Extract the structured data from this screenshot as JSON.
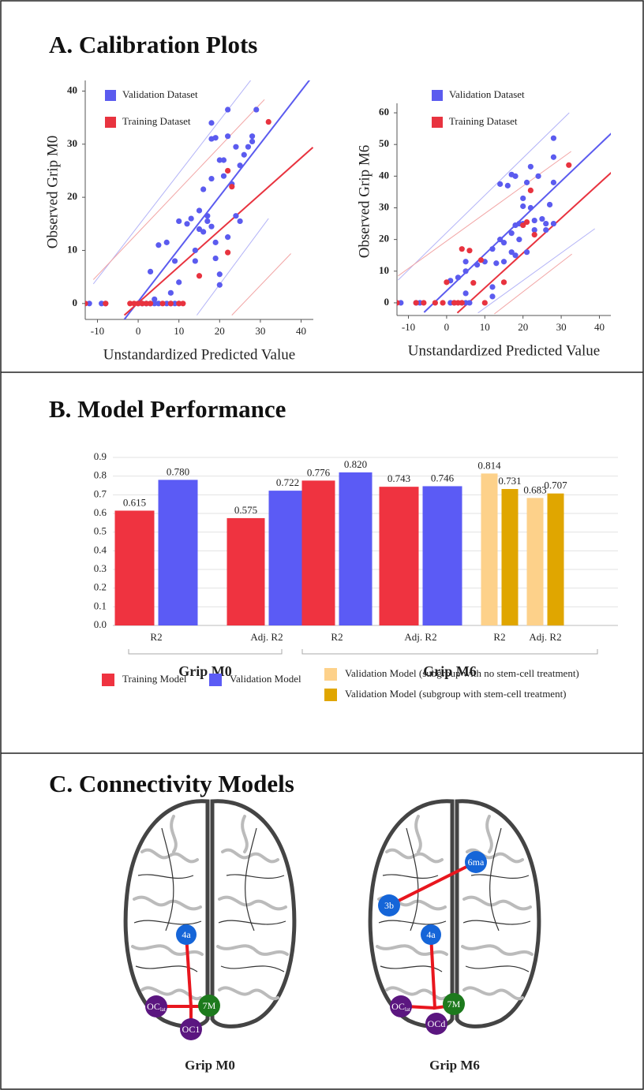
{
  "panel_titles": [
    "A. Calibration Plots",
    "B. Model Performance",
    "C. Connectivity Models"
  ],
  "chart_data": [
    {
      "type": "scatter",
      "x_label": "Unstandardized Predicted Value",
      "y_label": "Observed Grip M0",
      "xlim": [
        -13,
        43
      ],
      "ylim": [
        -3,
        42
      ],
      "xticks": [
        -10,
        0,
        10,
        20,
        30,
        40
      ],
      "yticks": [
        0,
        10,
        20,
        30,
        40
      ],
      "series": [
        {
          "name": "Validation Dataset",
          "color": "#5b5bef",
          "x": [
            -12,
            -9,
            -8,
            0,
            1,
            2,
            3,
            4,
            5,
            7,
            8,
            9,
            10,
            4,
            3,
            5,
            7,
            8,
            9,
            10,
            10,
            12,
            13,
            14,
            14,
            15,
            15,
            16,
            16,
            17,
            17,
            18,
            18,
            18,
            19,
            18,
            19,
            19,
            20,
            20,
            20,
            21,
            21,
            22,
            22,
            22,
            23,
            24,
            24,
            25,
            25,
            26,
            27,
            28,
            28,
            29
          ],
          "values": [
            0,
            0,
            0,
            0,
            0,
            0,
            0,
            0,
            0,
            0,
            0,
            0,
            0,
            0.8,
            6,
            11,
            11.5,
            2,
            8,
            4,
            15.5,
            15,
            16,
            10,
            8,
            17.5,
            14,
            13.5,
            21.5,
            16.5,
            15.5,
            34,
            31,
            23.5,
            31.2,
            14.5,
            8.5,
            11.5,
            27,
            3.5,
            5.5,
            24,
            27,
            31.5,
            36.5,
            12.5,
            22.5,
            29.5,
            16.5,
            26,
            15.5,
            28,
            29.5,
            31.5,
            30.5,
            36.5
          ]
        },
        {
          "name": "Training Dataset",
          "color": "#e8333f",
          "x": [
            -13,
            -8,
            -2,
            -1,
            0,
            1,
            2,
            3,
            6,
            8,
            10,
            11,
            15,
            22,
            22,
            23,
            32
          ],
          "values": [
            0,
            0,
            0,
            0,
            0,
            0,
            0,
            0,
            0,
            0,
            0,
            0,
            5.2,
            9.6,
            25,
            22,
            34.2
          ]
        }
      ],
      "fit_lines": [
        {
          "color": "#5b5bef",
          "width": 2,
          "x": [
            -3.4,
            42.5
          ],
          "values": [
            -3,
            42.5
          ]
        },
        {
          "color": "#b3b3f7",
          "width": 1,
          "x": [
            -11,
            27.8
          ],
          "values": [
            3.7,
            42.2
          ]
        },
        {
          "color": "#b3b3f7",
          "width": 1,
          "x": [
            14.4,
            32
          ],
          "values": [
            -2.2,
            16
          ]
        },
        {
          "color": "#e8333f",
          "width": 2,
          "x": [
            -3.4,
            42.9
          ],
          "values": [
            -2.2,
            29.4
          ]
        },
        {
          "color": "#f2a5a5",
          "width": 1,
          "x": [
            -11,
            31
          ],
          "values": [
            4.5,
            38.4
          ]
        },
        {
          "color": "#f2a5a5",
          "width": 1,
          "x": [
            23,
            37.5
          ],
          "values": [
            -2.2,
            9.4
          ]
        }
      ]
    },
    {
      "type": "scatter",
      "x_label": "Unstandardized Predicted Value",
      "y_label": "Observed Grip M6",
      "xlim": [
        -13,
        43
      ],
      "ylim": [
        -4,
        63
      ],
      "xticks": [
        -10,
        0,
        10,
        20,
        30,
        40
      ],
      "yticks": [
        0,
        10,
        20,
        30,
        40,
        50,
        60
      ],
      "series": [
        {
          "name": "Validation Dataset",
          "color": "#5b5bef",
          "x": [
            -12,
            -8,
            -7,
            1,
            2,
            4,
            5,
            6,
            1,
            3,
            5,
            5,
            5,
            8,
            10,
            12,
            12,
            12,
            13,
            14,
            14,
            15,
            15,
            16,
            17,
            17,
            17,
            18,
            18,
            18,
            19,
            19,
            20,
            20,
            20,
            21,
            21,
            22,
            22,
            23,
            23,
            24,
            25,
            26,
            26,
            27,
            28,
            28,
            28,
            28
          ],
          "values": [
            0,
            0,
            0,
            0,
            0,
            0,
            0,
            0,
            7,
            8,
            10,
            13,
            3,
            12,
            13,
            17,
            5,
            2,
            12.5,
            20,
            37.5,
            13,
            19,
            37,
            22,
            40.5,
            16,
            15,
            40,
            24.5,
            25,
            20,
            30.5,
            33,
            25,
            38,
            16,
            43,
            30,
            23,
            26,
            40,
            26.5,
            23,
            25,
            31,
            52,
            46,
            38,
            25
          ]
        },
        {
          "name": "Training Dataset",
          "color": "#e8333f",
          "x": [
            -13,
            -8,
            -6,
            -3,
            -1,
            0,
            2,
            3,
            4,
            4,
            6,
            7,
            9,
            10,
            15,
            20,
            21,
            22,
            23,
            32
          ],
          "values": [
            0,
            0,
            0,
            0,
            0,
            6.5,
            0,
            0,
            0,
            17,
            16.5,
            6.3,
            13.5,
            0,
            6.5,
            24.5,
            25.5,
            35.5,
            21.5,
            43.5
          ]
        }
      ],
      "fit_lines": [
        {
          "color": "#5b5bef",
          "width": 2,
          "x": [
            -5.9,
            43.7
          ],
          "values": [
            -3,
            54.2
          ]
        },
        {
          "color": "#b3b3f7",
          "width": 1,
          "x": [
            -12.7,
            32.1
          ],
          "values": [
            7.2,
            60
          ]
        },
        {
          "color": "#b3b3f7",
          "width": 1,
          "x": [
            8.2,
            38.8
          ],
          "values": [
            -3.2,
            23.4
          ]
        },
        {
          "color": "#e8333f",
          "width": 2,
          "x": [
            2.8,
            43.7
          ],
          "values": [
            -3.2,
            41.8
          ]
        },
        {
          "color": "#f2a5a5",
          "width": 1,
          "x": [
            -12.7,
            32.6
          ],
          "values": [
            8.5,
            47.8
          ]
        },
        {
          "color": "#f2a5a5",
          "width": 1,
          "x": [
            12.5,
            32.8
          ],
          "values": [
            -3.5,
            15.4
          ]
        }
      ]
    },
    {
      "type": "bar",
      "categories": [
        "R2",
        "Adj. R2",
        "R2",
        "Adj. R2",
        "R2",
        "Adj. R2"
      ],
      "groups": [
        "Grip M0",
        "Grip M6"
      ],
      "ylim": [
        0,
        0.9
      ],
      "yticks": [
        {
          "value": 0,
          "label": "0.0"
        },
        0.1,
        0.2,
        0.3,
        0.4,
        0.5,
        0.6,
        0.7,
        0.8,
        0.9
      ],
      "grid": true,
      "series": [
        {
          "name": "Training Model",
          "color": "#ef3340",
          "values": [
            0.615,
            0.575,
            0.776,
            0.743,
            null,
            null
          ],
          "value_labels": [
            "0.615",
            "0.575",
            "0.776",
            "0.743",
            null,
            null
          ]
        },
        {
          "name": "Validation Model",
          "color": "#5b5bf5",
          "values": [
            0.78,
            0.722,
            0.82,
            0.746,
            null,
            null
          ],
          "value_labels": [
            "0.780",
            "0.722",
            "0.820",
            "0.746",
            null,
            null
          ]
        },
        {
          "name": "Validation Model (subgroup with no stem-cell treatment)",
          "color": "#fdd18a",
          "values": [
            null,
            null,
            null,
            null,
            0.814,
            0.683
          ],
          "value_labels": [
            null,
            null,
            null,
            null,
            "0.814",
            "0.683"
          ]
        },
        {
          "name": "Validation Model (subgroup with stem-cell treatment)",
          "color": "#e0a600",
          "values": [
            null,
            null,
            null,
            null,
            0.731,
            0.707
          ],
          "value_labels": [
            null,
            null,
            null,
            null,
            "0.731",
            "0.707"
          ]
        }
      ]
    }
  ],
  "connectivity": [
    {
      "caption": "Grip M0",
      "nodes": [
        {
          "label": "4a"
        },
        {
          "label": "7M"
        },
        {
          "label": "OC",
          "sub": "lat"
        },
        {
          "label": "OC1"
        }
      ]
    },
    {
      "caption": "Grip M6",
      "nodes": [
        {
          "label": "6ma"
        },
        {
          "label": "3b"
        },
        {
          "label": "4a"
        },
        {
          "label": "7M"
        },
        {
          "label": "OC",
          "sub": "lat"
        },
        {
          "label": "OCd"
        }
      ]
    }
  ]
}
